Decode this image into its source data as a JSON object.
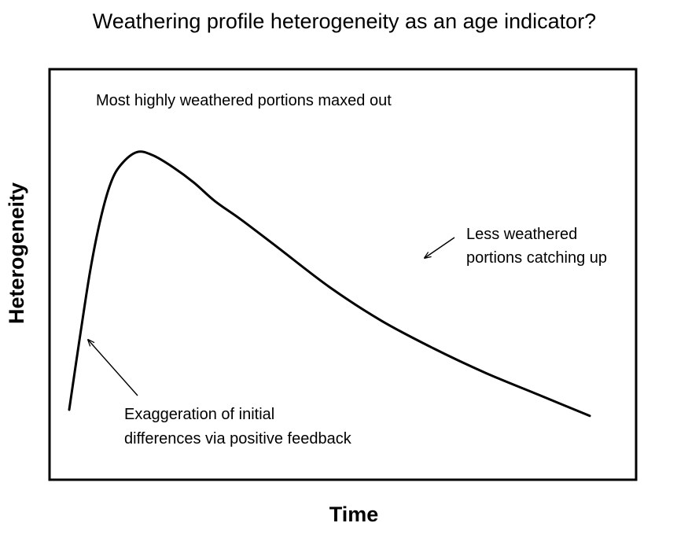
{
  "chart_data": {
    "type": "line",
    "title": "Weathering profile heterogeneity as an age indicator?",
    "xlabel": "Time",
    "ylabel": "Heterogeneity",
    "xlim": [
      0,
      100
    ],
    "ylim": [
      0,
      100
    ],
    "grid": false,
    "legend": "none",
    "series": [
      {
        "x": [
          0,
          2,
          4,
          6,
          8,
          10,
          13,
          16,
          20,
          24,
          28,
          33,
          40,
          50,
          60,
          70,
          80,
          90,
          100
        ],
        "y": [
          10,
          33,
          55,
          72,
          84,
          90,
          94,
          93,
          89,
          84,
          78,
          72,
          63,
          50,
          39,
          30,
          22,
          15,
          8
        ],
        "color": "#000000"
      }
    ],
    "annotations": [
      {
        "id": "peak",
        "lines": [
          "Most highly weathered portions maxed out"
        ],
        "arrow": false
      },
      {
        "id": "decline",
        "lines": [
          "Less weathered",
          "portions catching up"
        ],
        "arrow": true
      },
      {
        "id": "rise",
        "lines": [
          "Exaggeration of initial",
          "differences via positive feedback"
        ],
        "arrow": true
      }
    ]
  }
}
